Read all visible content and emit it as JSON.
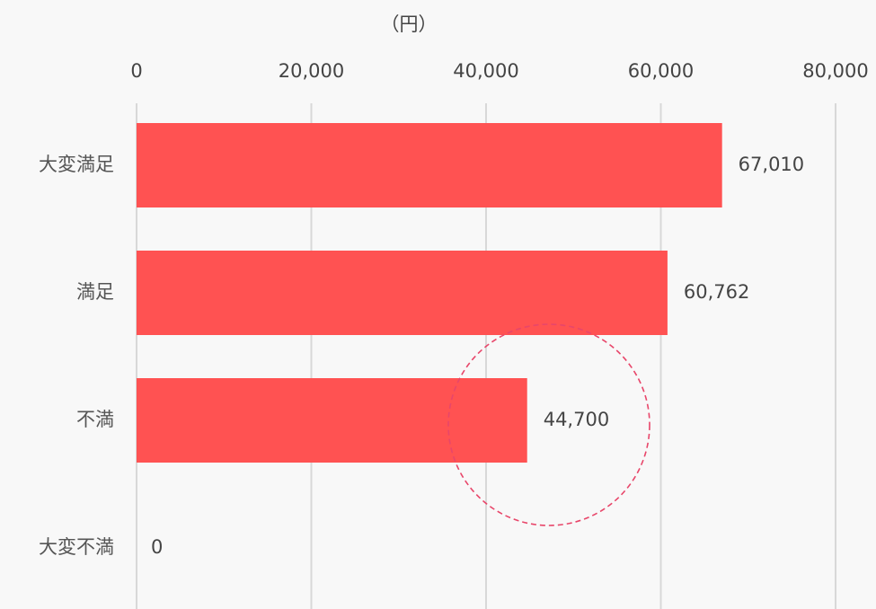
{
  "chart_data": {
    "type": "bar",
    "orientation": "horizontal",
    "x_label": "（円）",
    "categories": [
      "大変満足",
      "満足",
      "不満",
      "大変不満"
    ],
    "values": [
      67010,
      60762,
      44700,
      0
    ],
    "value_labels": [
      "67,010",
      "60,762",
      "44,700",
      "0"
    ],
    "color": "#ff5252",
    "xlim": [
      0,
      80000
    ],
    "xticks": [
      0,
      {
        "value": 20000,
        "label": "20,000"
      },
      {
        "value": 40000,
        "label": "40,000"
      },
      {
        "value": 60000,
        "label": "60,000"
      },
      {
        "value": 80000,
        "label": "80,000"
      }
    ],
    "grid": true
  }
}
